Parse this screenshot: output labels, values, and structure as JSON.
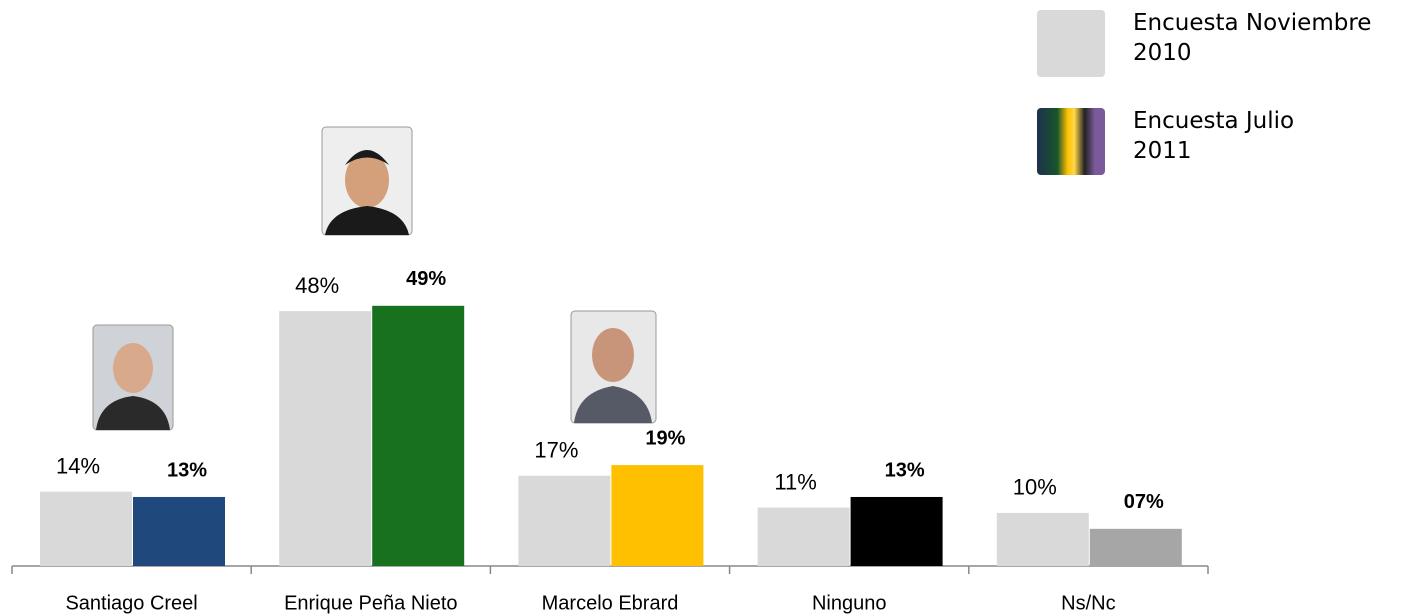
{
  "chart_data": {
    "type": "bar",
    "categories": [
      "Santiago Creel",
      "Enrique Peña Nieto",
      "Marcelo Ebrard",
      "Ninguno",
      "Ns/Nc"
    ],
    "series": [
      {
        "name": "Encuesta Noviembre 2010",
        "color": "#d9d9d9",
        "values": [
          14,
          48,
          17,
          11,
          10
        ],
        "value_labels": [
          "14%",
          "48%",
          "17%",
          "11%",
          "10%"
        ]
      },
      {
        "name": "Encuesta Julio 2011",
        "colors": [
          "#1f497d",
          "#17711f",
          "#ffc000",
          "#000000",
          "#a6a6a6"
        ],
        "values": [
          13,
          49,
          19,
          13,
          7
        ],
        "value_labels": [
          "13%",
          "49%",
          "19%",
          "13%",
          "07%"
        ]
      }
    ],
    "legend": "top-right"
  }
}
